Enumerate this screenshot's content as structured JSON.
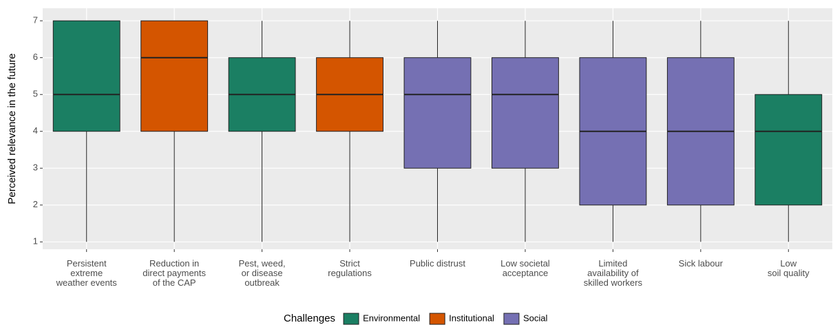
{
  "chart_data": {
    "type": "box",
    "ylabel": "Perceived relevance in the future",
    "categories": [
      "Persistent\nextreme\nweather events",
      "Reduction in\ndirect payments\nof the CAP",
      "Pest, weed,\nor disease\noutbreak",
      "Strict\nregulations",
      "Public distrust",
      "Low societal\nacceptance",
      "Limited\navailability of\nskilled workers",
      "Sick labour",
      "Low\nsoil quality"
    ],
    "legend_title": "Challenges",
    "series": [
      {
        "name": "Environmental",
        "color": "#1b7f63",
        "min": [
          1,
          null,
          1,
          null,
          null,
          null,
          null,
          null,
          1
        ],
        "q1": [
          4,
          null,
          4,
          null,
          null,
          null,
          null,
          null,
          2
        ],
        "median": [
          5,
          null,
          5,
          null,
          null,
          null,
          null,
          null,
          4
        ],
        "q3": [
          7,
          null,
          6,
          null,
          null,
          null,
          null,
          null,
          5
        ],
        "max": [
          7,
          null,
          7,
          null,
          null,
          null,
          null,
          null,
          7
        ]
      },
      {
        "name": "Institutional",
        "color": "#d45500",
        "min": [
          null,
          1,
          null,
          1,
          null,
          null,
          null,
          null,
          null
        ],
        "q1": [
          null,
          4,
          null,
          4,
          null,
          null,
          null,
          null,
          null
        ],
        "median": [
          null,
          6,
          null,
          5,
          null,
          null,
          null,
          null,
          null
        ],
        "q3": [
          null,
          7,
          null,
          6,
          null,
          null,
          null,
          null,
          null
        ],
        "max": [
          null,
          7,
          null,
          7,
          null,
          null,
          null,
          null,
          null
        ]
      },
      {
        "name": "Social",
        "color": "#7570b3",
        "min": [
          null,
          null,
          null,
          null,
          1,
          1,
          1,
          1,
          null
        ],
        "q1": [
          null,
          null,
          null,
          null,
          3,
          3,
          2,
          2,
          null
        ],
        "median": [
          null,
          null,
          null,
          null,
          5,
          5,
          4,
          4,
          null
        ],
        "q3": [
          null,
          null,
          null,
          null,
          6,
          6,
          6,
          6,
          null
        ],
        "max": [
          null,
          null,
          null,
          null,
          7,
          7,
          7,
          7,
          null
        ]
      }
    ],
    "ylim": [
      0.8,
      7.34
    ],
    "yticks": [
      1,
      2,
      3,
      4,
      5,
      6,
      7
    ],
    "grid": true
  }
}
